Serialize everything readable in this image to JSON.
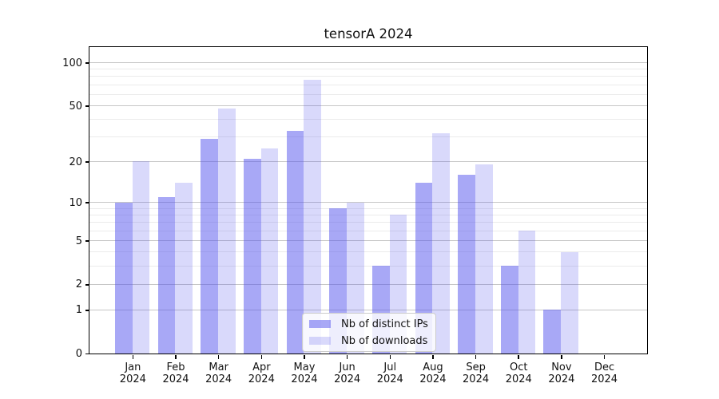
{
  "title": "tensorA 2024",
  "chart_data": {
    "type": "bar",
    "title": "tensorA 2024",
    "categories": [
      "Jan 2024",
      "Feb 2024",
      "Mar 2024",
      "Apr 2024",
      "May 2024",
      "Jun 2024",
      "Jul 2024",
      "Aug 2024",
      "Sep 2024",
      "Oct 2024",
      "Nov 2024",
      "Dec 2024"
    ],
    "series": [
      {
        "name": "Nb of distinct IPs",
        "values": [
          10,
          11,
          29,
          21,
          33,
          9,
          3,
          14,
          16,
          3,
          1,
          0
        ],
        "color": "#5151ed",
        "alpha": 0.5
      },
      {
        "name": "Nb of downloads",
        "values": [
          20,
          14,
          48,
          25,
          76,
          10,
          8,
          32,
          19,
          6,
          4,
          0
        ],
        "color": "#5050ed",
        "alpha": 0.22
      }
    ],
    "xlabel": "",
    "ylabel": "",
    "y_scale": "log1p",
    "ylim": [
      0,
      128
    ],
    "y_major_ticks": [
      0,
      1,
      2,
      5,
      10,
      20,
      50,
      100
    ],
    "y_minor_gridlines": [
      3,
      4,
      6,
      7,
      8,
      9,
      30,
      40,
      60,
      70,
      80,
      90
    ],
    "grid": "horizontal",
    "legend_position": "lower center",
    "colors": {
      "bar_ips_rendered": "#a8a8f6",
      "bar_downloads_rendered": "#d8d8f8",
      "grid_major": "#c6c6c6",
      "grid_minor": "#ebebeb",
      "spine": "#000000"
    }
  }
}
